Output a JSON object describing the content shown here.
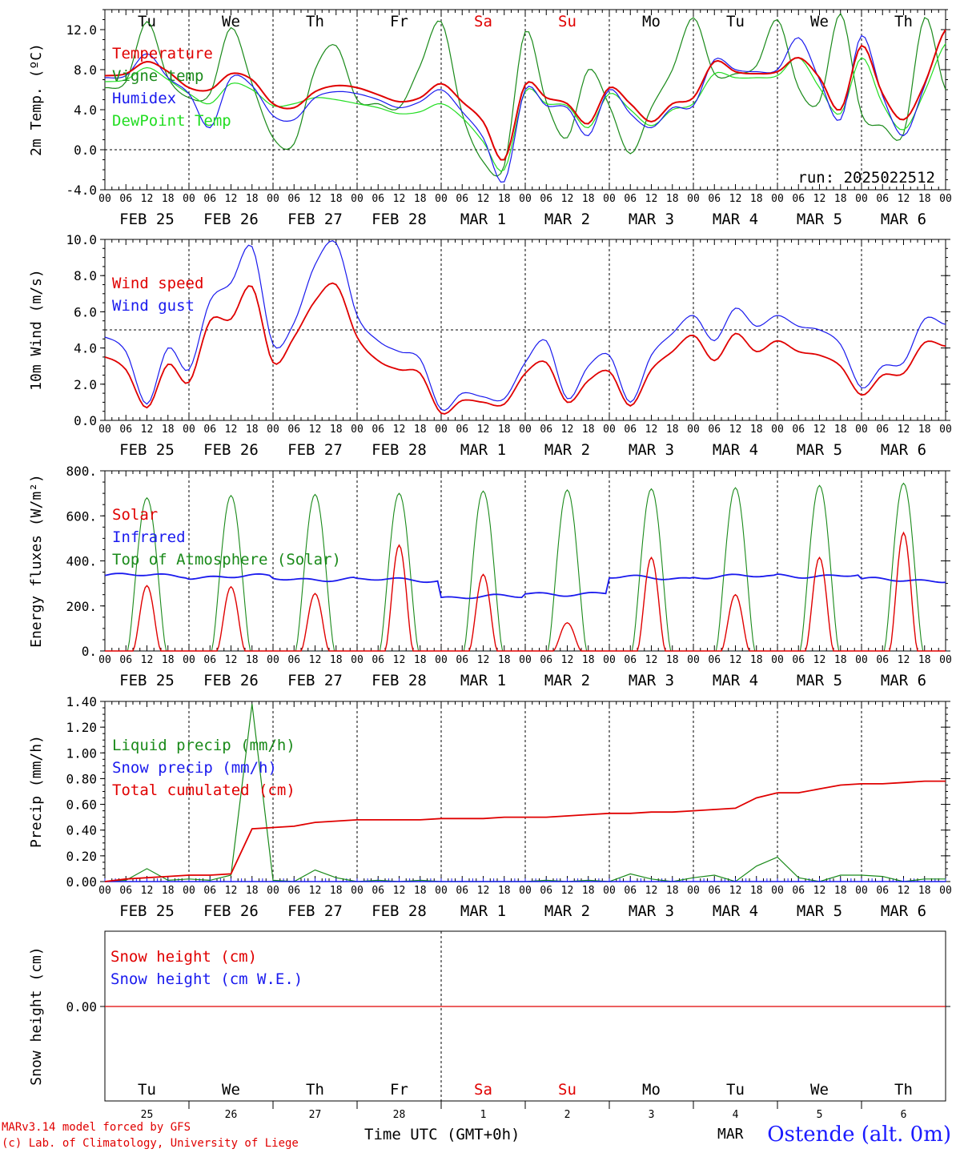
{
  "colors": {
    "red": "#e00000",
    "green": "#1a8a1a",
    "blue": "#1a1aee",
    "lightgreen": "#22dd22",
    "black": "#000000"
  },
  "time_axis": {
    "tick_hours": [
      "00",
      "06",
      "12",
      "18"
    ],
    "end_hour": "00",
    "dates": [
      "FEB 25",
      "FEB 26",
      "FEB 27",
      "FEB 28",
      "MAR  1",
      "MAR  2",
      "MAR  3",
      "MAR  4",
      "MAR  5",
      "MAR  6"
    ],
    "weekdays": [
      "Tu",
      "We",
      "Th",
      "Fr",
      "Sa",
      "Su",
      "Mo",
      "Tu",
      "We",
      "Th"
    ],
    "weekend_days": [
      "Sa",
      "Su"
    ],
    "day_numbers": [
      "25",
      "26",
      "27",
      "28",
      "1",
      "2",
      "3",
      "4",
      "5",
      "6"
    ]
  },
  "footer": {
    "credit_line1": "MARv3.14 model forced by GFS",
    "credit_line2": "(c) Lab. of Climatology, University of Liege",
    "xtitle": "Time UTC (GMT+0h)",
    "month_label": "MAR",
    "station": "Ostende (alt. 0m)"
  },
  "chart_data": [
    {
      "id": "temp",
      "type": "line",
      "ylabel": "2m Temp. (ºC)",
      "ylim": [
        -4,
        14
      ],
      "yticks": [
        "-4.0",
        "0.0",
        "4.0",
        "8.0",
        "12.0"
      ],
      "yticks_values": [
        -4,
        0,
        4,
        8,
        12
      ],
      "ref_line": 0,
      "run_label": "run: 2025022512",
      "legend_position": "top-left",
      "x_hours": [
        0,
        6,
        12,
        18,
        24,
        30,
        36,
        42,
        48,
        54,
        60,
        66,
        72,
        78,
        84,
        90,
        96,
        102,
        108,
        114,
        120,
        126,
        132,
        138,
        144,
        150,
        156,
        162,
        168,
        174,
        180,
        186,
        192,
        198,
        204,
        210,
        216,
        222,
        228,
        234,
        240
      ],
      "series": [
        {
          "name": "Temperature",
          "color": "red",
          "values": [
            7.4,
            7.6,
            8.8,
            7.8,
            6.2,
            6.0,
            7.6,
            7.0,
            4.6,
            4.2,
            5.8,
            6.4,
            6.2,
            5.5,
            4.8,
            5.2,
            6.6,
            4.8,
            2.8,
            -1.0,
            6.5,
            5.2,
            4.6,
            2.6,
            6.2,
            4.6,
            2.8,
            4.6,
            5.2,
            8.8,
            7.8,
            7.6,
            7.8,
            9.2,
            7.2,
            4.0,
            10.4,
            5.6,
            3.0,
            6.6,
            12.0
          ]
        },
        {
          "name": "Vigne temp",
          "color": "green",
          "values": [
            6.2,
            6.8,
            12.8,
            7.2,
            5.2,
            5.6,
            12.2,
            6.6,
            1.2,
            0.6,
            8.0,
            10.4,
            5.0,
            4.6,
            4.2,
            8.4,
            12.8,
            3.6,
            -1.2,
            -1.6,
            11.8,
            4.8,
            1.2,
            8.0,
            4.4,
            -0.4,
            4.2,
            8.0,
            13.2,
            7.6,
            7.6,
            8.4,
            13.0,
            6.2,
            4.8,
            13.6,
            3.6,
            2.4,
            1.6,
            13.2,
            6.0
          ]
        },
        {
          "name": "Humidex",
          "color": "blue",
          "values": [
            7.2,
            7.4,
            9.6,
            7.2,
            5.6,
            2.2,
            7.2,
            6.4,
            3.4,
            3.0,
            5.2,
            5.8,
            5.6,
            5.0,
            4.2,
            4.8,
            6.0,
            3.8,
            1.2,
            -3.2,
            6.0,
            4.4,
            4.2,
            1.4,
            6.0,
            3.6,
            2.2,
            4.2,
            4.4,
            9.0,
            8.0,
            7.8,
            8.0,
            11.2,
            7.0,
            3.0,
            11.4,
            5.4,
            1.4,
            6.4,
            12.0
          ]
        },
        {
          "name": "DewPoint Temp",
          "color": "lightgreen",
          "values": [
            6.8,
            7.0,
            8.2,
            7.0,
            5.6,
            4.6,
            6.6,
            6.0,
            4.4,
            4.6,
            5.2,
            5.0,
            4.6,
            4.2,
            3.6,
            3.8,
            4.6,
            3.2,
            0.8,
            -2.0,
            5.8,
            4.6,
            4.4,
            2.2,
            5.6,
            4.0,
            2.4,
            4.0,
            4.6,
            7.6,
            7.2,
            7.2,
            7.4,
            9.2,
            6.2,
            3.6,
            9.2,
            4.6,
            2.0,
            5.8,
            10.6
          ]
        }
      ]
    },
    {
      "id": "wind",
      "type": "line",
      "ylabel": "10m Wind (m/s)",
      "ylim": [
        0,
        10
      ],
      "yticks": [
        "0.0",
        "2.0",
        "4.0",
        "6.0",
        "8.0",
        "10.0"
      ],
      "yticks_values": [
        0,
        2,
        4,
        6,
        8,
        10
      ],
      "ref_line": 5,
      "legend_position": "top-left",
      "x_hours": [
        0,
        6,
        12,
        18,
        24,
        30,
        36,
        42,
        48,
        54,
        60,
        66,
        72,
        78,
        84,
        90,
        96,
        102,
        108,
        114,
        120,
        126,
        132,
        138,
        144,
        150,
        156,
        162,
        168,
        174,
        180,
        186,
        192,
        198,
        204,
        210,
        216,
        222,
        228,
        234,
        240
      ],
      "series": [
        {
          "name": "Wind speed",
          "color": "red",
          "values": [
            3.5,
            2.8,
            0.7,
            3.1,
            2.1,
            5.5,
            5.6,
            7.4,
            3.2,
            4.6,
            6.6,
            7.5,
            4.6,
            3.3,
            2.8,
            2.6,
            0.4,
            1.1,
            1.0,
            0.9,
            2.6,
            3.2,
            1.0,
            2.2,
            2.7,
            0.8,
            2.8,
            3.8,
            4.7,
            3.3,
            4.8,
            3.8,
            4.4,
            3.8,
            3.6,
            3.0,
            1.4,
            2.5,
            2.6,
            4.3,
            4.1
          ]
        },
        {
          "name": "Wind gust",
          "color": "blue",
          "values": [
            4.6,
            3.8,
            0.9,
            4.0,
            2.8,
            6.6,
            7.6,
            9.6,
            4.2,
            5.4,
            8.6,
            9.8,
            5.8,
            4.4,
            3.8,
            3.4,
            0.6,
            1.5,
            1.3,
            1.2,
            3.2,
            4.4,
            1.2,
            3.0,
            3.6,
            1.0,
            3.6,
            4.8,
            5.8,
            4.4,
            6.2,
            5.2,
            5.8,
            5.2,
            5.0,
            4.2,
            1.8,
            3.0,
            3.2,
            5.6,
            5.3
          ]
        }
      ]
    },
    {
      "id": "energy",
      "type": "line",
      "ylabel": "Energy fluxes (W/m²)",
      "ylim": [
        0,
        800
      ],
      "yticks": [
        "0.",
        "200.",
        "400.",
        "600.",
        "800."
      ],
      "yticks_values": [
        0,
        200,
        400,
        600,
        800
      ],
      "legend_position": "top-left",
      "solar_peaks": [
        290,
        285,
        255,
        470,
        340,
        125,
        415,
        250,
        415,
        525
      ],
      "toa_peaks": [
        680,
        690,
        695,
        700,
        710,
        715,
        720,
        725,
        735,
        745
      ],
      "infrared_levels": [
        335,
        330,
        320,
        315,
        240,
        255,
        325,
        330,
        335,
        315
      ],
      "series": [
        {
          "name": "Solar",
          "color": "red"
        },
        {
          "name": "Infrared",
          "color": "blue"
        },
        {
          "name": "Top of Atmosphere (Solar)",
          "color": "green"
        }
      ]
    },
    {
      "id": "precip",
      "type": "line",
      "ylabel": "Precip (mm/h)",
      "ylim": [
        0,
        1.4
      ],
      "yticks": [
        "0.00",
        "0.20",
        "0.40",
        "0.60",
        "0.80",
        "1.00",
        "1.20",
        "1.40"
      ],
      "yticks_values": [
        0,
        0.2,
        0.4,
        0.6,
        0.8,
        1.0,
        1.2,
        1.4
      ],
      "legend_position": "top-left",
      "x_hours": [
        0,
        6,
        12,
        18,
        24,
        30,
        36,
        42,
        48,
        54,
        60,
        66,
        72,
        78,
        84,
        90,
        96,
        102,
        108,
        114,
        120,
        126,
        132,
        138,
        144,
        150,
        156,
        162,
        168,
        174,
        180,
        186,
        192,
        198,
        204,
        210,
        216,
        222,
        228,
        234,
        240
      ],
      "series": [
        {
          "name": "Liquid precip (mm/h)",
          "color": "green",
          "values": [
            0.0,
            0.01,
            0.1,
            0.01,
            0.02,
            0.01,
            0.05,
            1.38,
            0.01,
            0.0,
            0.09,
            0.03,
            0.0,
            0.01,
            0.0,
            0.01,
            0.0,
            0.0,
            0.0,
            0.0,
            0.0,
            0.01,
            0.0,
            0.01,
            0.0,
            0.06,
            0.02,
            0.0,
            0.03,
            0.05,
            0.0,
            0.12,
            0.19,
            0.03,
            0.0,
            0.05,
            0.05,
            0.04,
            0.0,
            0.02,
            0.02
          ]
        },
        {
          "name": "Snow precip (mm/h)",
          "color": "blue",
          "values": [
            0,
            0,
            0,
            0,
            0,
            0,
            0,
            0,
            0,
            0,
            0,
            0,
            0,
            0,
            0,
            0,
            0,
            0,
            0,
            0,
            0,
            0,
            0,
            0,
            0,
            0,
            0,
            0,
            0,
            0,
            0,
            0,
            0,
            0,
            0,
            0,
            0,
            0,
            0,
            0,
            0
          ]
        },
        {
          "name": "Total cumulated (cm)",
          "color": "red",
          "values": [
            0.0,
            0.02,
            0.03,
            0.04,
            0.05,
            0.05,
            0.06,
            0.41,
            0.42,
            0.43,
            0.46,
            0.47,
            0.48,
            0.48,
            0.48,
            0.48,
            0.49,
            0.49,
            0.49,
            0.5,
            0.5,
            0.5,
            0.51,
            0.52,
            0.53,
            0.53,
            0.54,
            0.54,
            0.55,
            0.56,
            0.57,
            0.65,
            0.69,
            0.69,
            0.72,
            0.75,
            0.76,
            0.76,
            0.77,
            0.78,
            0.78
          ]
        }
      ]
    },
    {
      "id": "snow",
      "type": "line",
      "ylabel": "Snow height (cm)",
      "yticks": [
        "0.00"
      ],
      "yticks_values": [
        0
      ],
      "legend_position": "top-left",
      "series": [
        {
          "name": "Snow height (cm)",
          "color": "red",
          "values": [
            0,
            0
          ]
        },
        {
          "name": "Snow height (cm W.E.)",
          "color": "blue",
          "values": [
            0,
            0
          ]
        }
      ]
    }
  ]
}
